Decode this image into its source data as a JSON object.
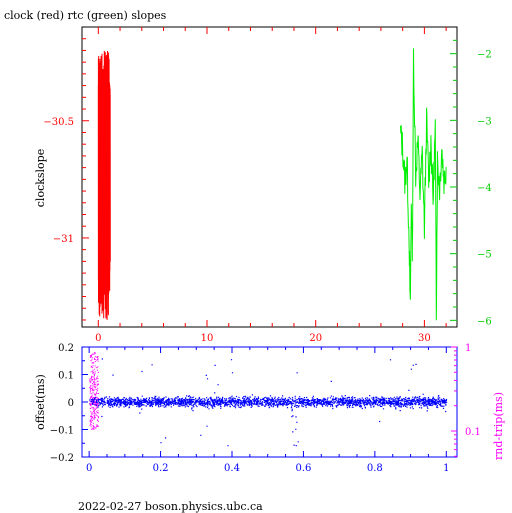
{
  "footer": "2022-02-27 boson.physics.ubc.ca",
  "chart_data": [
    {
      "type": "line",
      "title": "clock (red) rtc (green) slopes",
      "ylabel": "clockslope",
      "x_range": [
        -1.5,
        33
      ],
      "x_ticks": [
        0,
        10,
        20,
        30
      ],
      "y_left_range": [
        -31.38,
        -30.1
      ],
      "y_left_ticks": [
        -31,
        -30.5
      ],
      "y_right_range": [
        -6.1,
        -1.6
      ],
      "y_right_ticks": [
        -6,
        -5,
        -4,
        -3,
        -2
      ],
      "colors": {
        "clock": "#ff0000",
        "rtc": "#00ee00",
        "axis_left": "#ff0000",
        "axis_right": "#00cc00",
        "frame": "#000000"
      },
      "series": [
        {
          "name": "clock",
          "color": "#ff0000",
          "axis": "left",
          "x": [
            0.0,
            0.1,
            0.2,
            0.3,
            0.4,
            0.5,
            0.6,
            0.7,
            0.8,
            0.9,
            1.0,
            1.1
          ],
          "y": [
            -30.4,
            -31.2,
            -30.35,
            -31.3,
            -30.5,
            -31.25,
            -30.2,
            -31.35,
            -30.3,
            -31.1,
            -30.45,
            -31.15
          ]
        },
        {
          "name": "rtc",
          "color": "#00ee00",
          "axis": "right",
          "x": [
            27.8,
            28.0,
            28.2,
            28.4,
            28.6,
            28.7,
            28.8,
            28.9,
            29.0,
            29.2,
            29.4,
            29.6,
            29.8,
            30.0,
            30.2,
            30.4,
            30.6,
            30.8,
            31.0,
            31.1,
            31.2,
            31.4,
            31.6,
            31.8,
            32.0
          ],
          "y": [
            -3.2,
            -3.4,
            -3.9,
            -3.6,
            -4.8,
            -5.9,
            -4.2,
            -5.0,
            -2.0,
            -3.8,
            -3.3,
            -4.1,
            -3.5,
            -4.6,
            -3.0,
            -3.9,
            -3.3,
            -4.2,
            -3.1,
            -5.9,
            -3.6,
            -4.0,
            -3.4,
            -3.9,
            -3.7
          ]
        }
      ]
    },
    {
      "type": "scatter",
      "ylabel": "offset(ms)",
      "y2label": "rnd-trip(ms)",
      "x_range": [
        -0.02,
        1.03
      ],
      "x_ticks": [
        0,
        0.2,
        0.4,
        0.6,
        0.8,
        1
      ],
      "y_range": [
        -0.2,
        0.2
      ],
      "y_ticks": [
        -0.2,
        -0.1,
        0,
        0.1,
        0.2
      ],
      "y2_ticks": [
        0.1,
        1
      ],
      "y2_scale": "log",
      "colors": {
        "offset": "#0000ff",
        "rndtrip": "#ff00ff",
        "axis_left": "#0000ff",
        "axis_right": "#ff00ff"
      },
      "series": [
        {
          "name": "offset",
          "color": "#0000ff",
          "description_band": {
            "center": 0.0,
            "spread": 0.03
          }
        },
        {
          "name": "rnd-trip",
          "color": "#ff00ff",
          "x_extent": [
            0,
            0.025
          ],
          "y_range": [
            -0.1,
            0.18
          ]
        }
      ],
      "features": [
        {
          "x": 0.575,
          "y_min": -0.17,
          "y_max": 0.03
        }
      ]
    }
  ]
}
